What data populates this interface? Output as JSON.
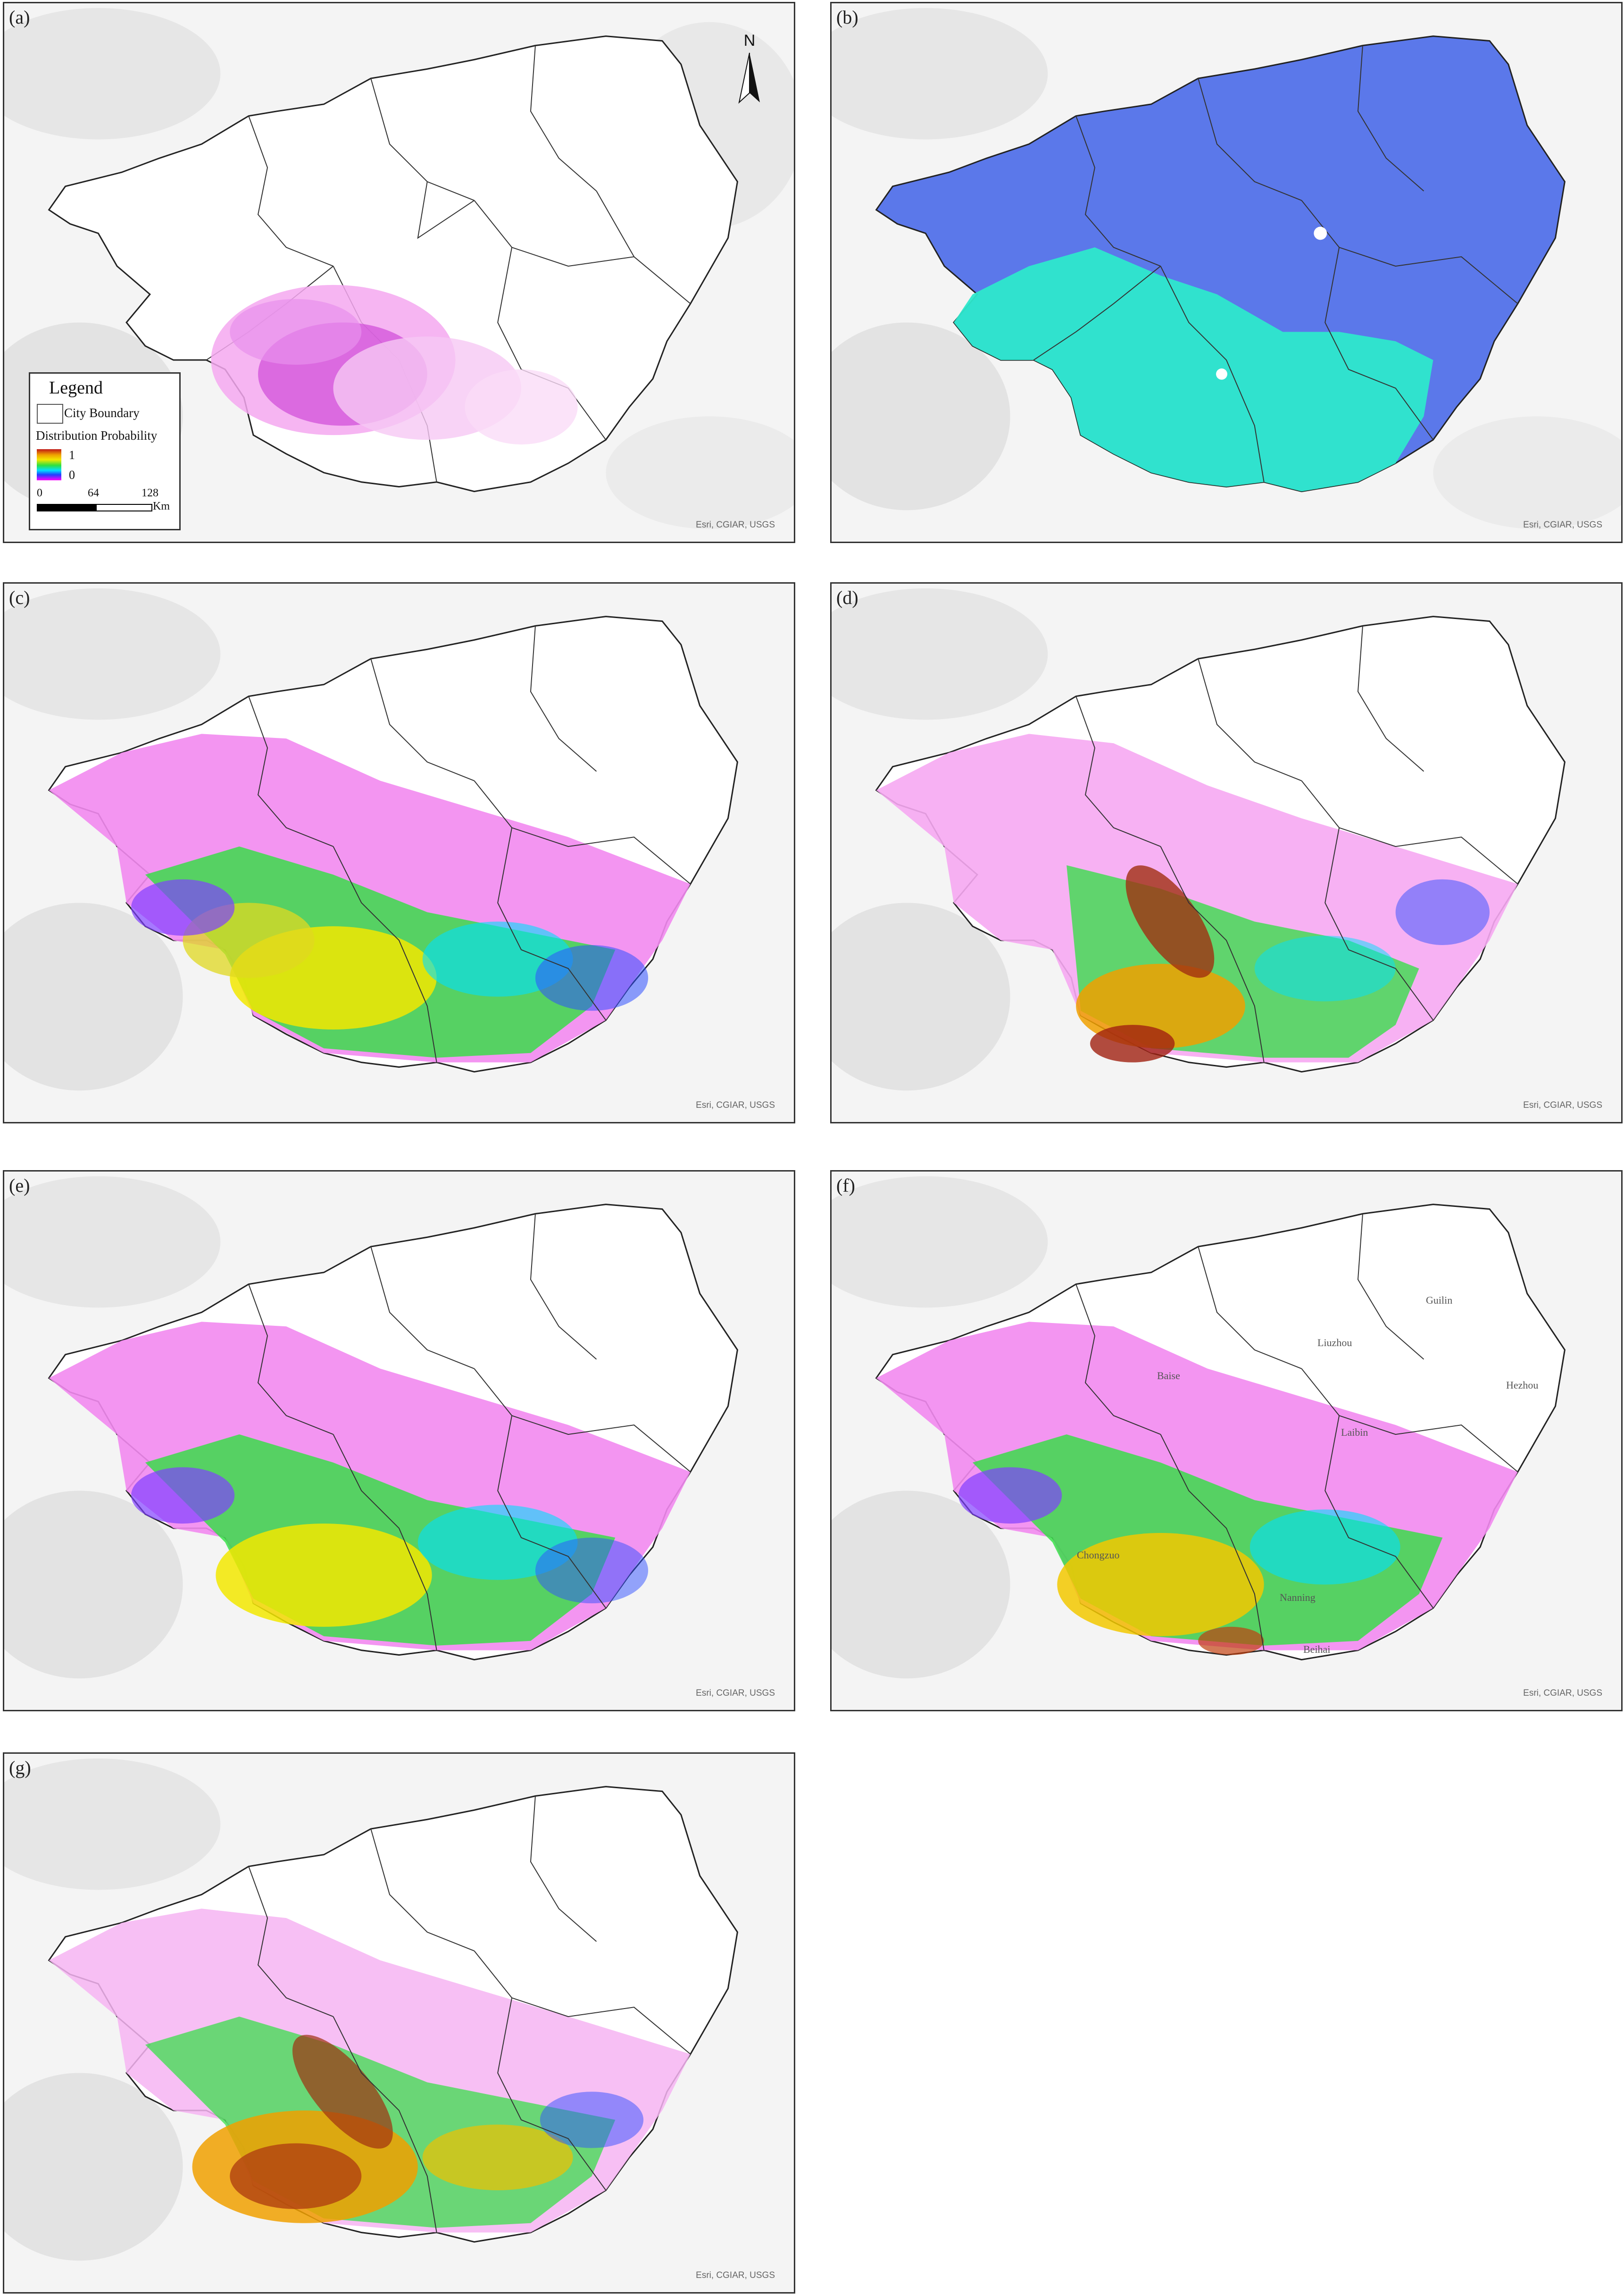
{
  "figure": {
    "panels": [
      {
        "id": "a",
        "label": "(a)",
        "credit": "Esri, CGIAR, USGS"
      },
      {
        "id": "b",
        "label": "(b)",
        "credit": "Esri, CGIAR, USGS"
      },
      {
        "id": "c",
        "label": "(c)",
        "credit": "Esri, CGIAR, USGS"
      },
      {
        "id": "d",
        "label": "(d)",
        "credit": "Esri, CGIAR, USGS"
      },
      {
        "id": "e",
        "label": "(e)",
        "credit": "Esri, CGIAR, USGS"
      },
      {
        "id": "f",
        "label": "(f)",
        "credit": "Esri, CGIAR, USGS"
      },
      {
        "id": "g",
        "label": "(g)",
        "credit": "Esri, CGIAR, USGS"
      }
    ]
  },
  "north_arrow": {
    "letter": "N"
  },
  "legend": {
    "title": "Legend",
    "city_boundary": "City Boundary",
    "distribution_title": "Distribution Probability",
    "ramp_high": "1",
    "ramp_low": "0",
    "scale_0": "0",
    "scale_1": "64",
    "scale_2": "128",
    "scale_unit": "Km"
  },
  "city_labels": [
    "Baise",
    "Liuzhou",
    "Guilin",
    "Hezhou",
    "Laibin",
    "Chongzuo",
    "Nanning",
    "Beihai"
  ],
  "colors": {
    "ramp": [
      "#c01818",
      "#f0a000",
      "#f2e800",
      "#2ee040",
      "#00e0ff",
      "#2040ff",
      "#ff00ff"
    ],
    "panel_b_main": "#5b78ea",
    "panel_b_south": "#2ee8cc",
    "boundary": "#222222"
  }
}
